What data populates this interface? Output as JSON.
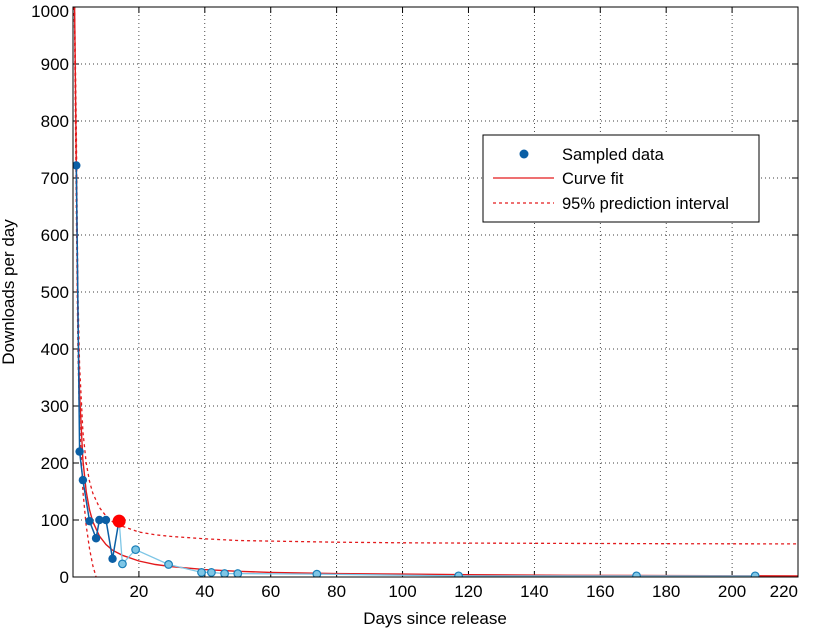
{
  "chart_data": {
    "type": "line",
    "xlabel": "Days since release",
    "ylabel": "Downloads per day",
    "xlim": [
      0,
      220
    ],
    "ylim": [
      0,
      1000
    ],
    "xticks": [
      20,
      40,
      60,
      80,
      100,
      120,
      140,
      160,
      180,
      200,
      220
    ],
    "yticks": [
      0,
      100,
      200,
      300,
      400,
      500,
      600,
      700,
      800,
      900,
      1000
    ],
    "grid": true,
    "legend_position": "upper-right",
    "legend": {
      "sampled": "Sampled data",
      "fit": "Curve fit",
      "interval": "95% prediction interval"
    },
    "colors": {
      "sampled_dark": "#0b5fa5",
      "sampled_light": "#7ec6e6",
      "fit": "#e31a1c",
      "highlight": "#ff0000"
    },
    "series": [
      {
        "name": "Sampled data",
        "x": [
          1,
          2,
          3,
          5,
          7,
          8,
          10,
          12,
          14
        ],
        "y": [
          722,
          220,
          170,
          98,
          68,
          100,
          100,
          32,
          100
        ]
      },
      {
        "x": [
          14,
          15,
          19,
          29,
          39,
          42,
          46,
          50,
          74,
          117,
          171,
          207
        ],
        "y": [
          100,
          23,
          48,
          22,
          8,
          8,
          6,
          6,
          5,
          2,
          2,
          2
        ]
      },
      {
        "name": "Curve fit",
        "x": [
          0.3,
          0.5,
          1,
          1.5,
          2,
          3,
          4,
          5,
          6,
          8,
          10,
          12,
          15,
          20,
          25,
          30,
          40,
          50,
          60,
          80,
          100,
          120,
          150,
          180,
          220
        ],
        "y": [
          1000,
          1000,
          722,
          450,
          320,
          205,
          150,
          118,
          97,
          72,
          57,
          47,
          38,
          28,
          22,
          18,
          13,
          10,
          8,
          6,
          5,
          4,
          3,
          2.5,
          2
        ]
      },
      {
        "name": "95% prediction interval",
        "x": [
          0.3,
          0.5,
          1,
          1.5,
          2,
          3,
          4,
          5,
          6,
          8,
          10,
          12,
          15,
          20,
          25,
          30,
          40,
          50,
          60,
          80,
          100,
          120,
          150,
          180,
          220
        ],
        "y": [
          1000,
          1000,
          790,
          500,
          370,
          255,
          200,
          168,
          147,
          122,
          107,
          97,
          89,
          79,
          74,
          71,
          67,
          64,
          63,
          61,
          60,
          59.5,
          59,
          58.5,
          58
        ]
      },
      {
        "name": "95% prediction interval",
        "x": [
          0.3,
          0.5,
          1,
          1.5,
          2,
          3,
          4,
          5,
          6,
          7
        ],
        "y": [
          1000,
          960,
          650,
          400,
          270,
          150,
          90,
          50,
          20,
          0
        ]
      }
    ],
    "highlight_point": {
      "x": 14,
      "y": 98
    }
  }
}
